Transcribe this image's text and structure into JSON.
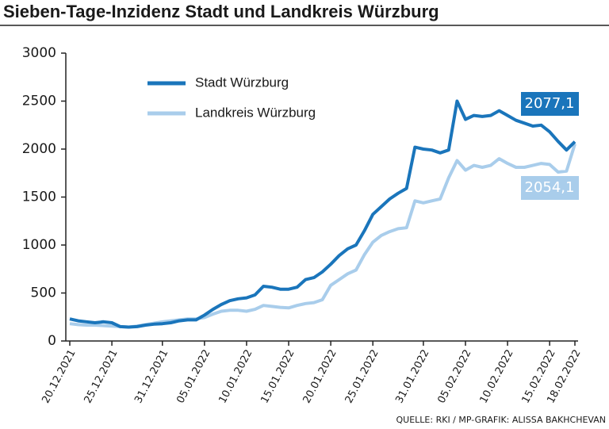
{
  "chart_data": {
    "type": "line",
    "title": "Sieben-Tage-Inzidenz Stadt und Landkreis Würzburg",
    "source": "QUELLE: RKI / MP-GRAFIK: ALISSA BAKHCHEVAN",
    "categories": [
      "20.12.2021",
      null,
      null,
      null,
      null,
      "25.12.2021",
      null,
      null,
      null,
      null,
      null,
      "31.12.2021",
      null,
      null,
      null,
      null,
      "05.01.2022",
      null,
      null,
      null,
      null,
      "10.01.2022",
      null,
      null,
      null,
      null,
      "15.01.2022",
      null,
      null,
      null,
      null,
      "20.01.2022",
      null,
      null,
      null,
      null,
      "25.01.2022",
      null,
      null,
      null,
      null,
      null,
      "31.01.2022",
      null,
      null,
      null,
      null,
      "05.02.2022",
      null,
      null,
      null,
      null,
      "10.02.2022",
      null,
      null,
      null,
      null,
      "15.02.2022",
      null,
      null,
      "18.02.2022"
    ],
    "series": [
      {
        "name": "Stadt Würzburg",
        "color": "#1a75bb",
        "values": [
          230,
          210,
          200,
          190,
          200,
          190,
          150,
          145,
          150,
          165,
          175,
          180,
          190,
          210,
          220,
          220,
          270,
          330,
          380,
          420,
          440,
          450,
          480,
          570,
          560,
          540,
          540,
          560,
          640,
          660,
          720,
          800,
          890,
          960,
          1000,
          1150,
          1320,
          1400,
          1480,
          1540,
          1590,
          2020,
          2000,
          1990,
          1960,
          1990,
          2500,
          2310,
          2350,
          2340,
          2350,
          2400,
          2350,
          2300,
          2270,
          2240,
          2250,
          2180,
          2080,
          1990,
          2077.1
        ],
        "value_labels": [
          null,
          null,
          null,
          null,
          null,
          null,
          null,
          null,
          null,
          null,
          null,
          null,
          null,
          null,
          null,
          null,
          null,
          null,
          null,
          null,
          null,
          null,
          null,
          null,
          null,
          null,
          null,
          null,
          null,
          null,
          null,
          null,
          null,
          null,
          null,
          null,
          null,
          null,
          null,
          null,
          null,
          null,
          null,
          null,
          null,
          null,
          null,
          null,
          null,
          null,
          null,
          null,
          null,
          null,
          null,
          null,
          null,
          null,
          null,
          null,
          "2077,1"
        ]
      },
      {
        "name": "Landkreis Würzburg",
        "color": "#a9cdeb",
        "values": [
          180,
          170,
          165,
          165,
          160,
          155,
          150,
          145,
          155,
          170,
          185,
          200,
          210,
          220,
          230,
          230,
          245,
          280,
          310,
          320,
          320,
          310,
          330,
          370,
          360,
          350,
          345,
          370,
          390,
          400,
          430,
          580,
          640,
          700,
          740,
          900,
          1030,
          1100,
          1140,
          1170,
          1180,
          1460,
          1440,
          1460,
          1480,
          1700,
          1880,
          1780,
          1830,
          1810,
          1830,
          1900,
          1850,
          1810,
          1810,
          1830,
          1850,
          1840,
          1760,
          1770,
          2054.1
        ],
        "value_labels": [
          null,
          null,
          null,
          null,
          null,
          null,
          null,
          null,
          null,
          null,
          null,
          null,
          null,
          null,
          null,
          null,
          null,
          null,
          null,
          null,
          null,
          null,
          null,
          null,
          null,
          null,
          null,
          null,
          null,
          null,
          null,
          null,
          null,
          null,
          null,
          null,
          null,
          null,
          null,
          null,
          null,
          null,
          null,
          null,
          null,
          null,
          null,
          null,
          null,
          null,
          null,
          null,
          null,
          null,
          null,
          null,
          null,
          null,
          null,
          null,
          "2054,1"
        ]
      }
    ],
    "ylim": [
      0,
      3000
    ],
    "yticks": [
      0,
      500,
      1000,
      1500,
      2000,
      2500,
      3000
    ],
    "grid": false
  }
}
